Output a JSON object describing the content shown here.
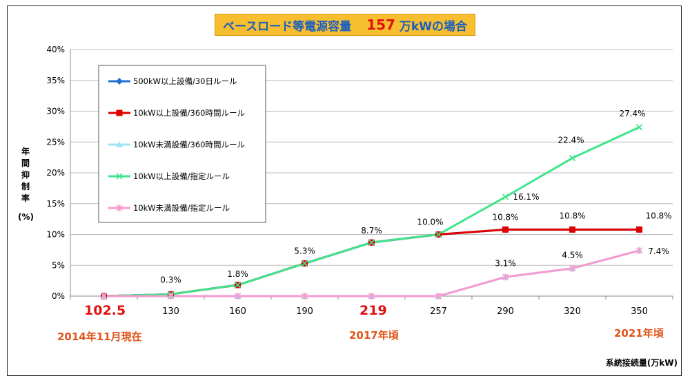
{
  "title": {
    "text": "ベースロード等電源容量",
    "value": "157",
    "unit": "万kWの場合"
  },
  "ylabel_chars": [
    "年",
    "間",
    "抑",
    "制",
    "率"
  ],
  "ylabel_unit": "(%)",
  "xlabel": "系統接続量(万kW)",
  "annotations": {
    "x_first": "102.5",
    "x_mid": "219",
    "date_now": "2014年11月現在",
    "date_mid": "2017年頃",
    "date_end": "2021年頃"
  },
  "colors": {
    "title_bg": "#f7be2f",
    "title_text": "#1a5fbf",
    "title_value": "#e01010",
    "annotation": "#e0541a",
    "annotation_red": "#e01010"
  },
  "chart_data": {
    "type": "line",
    "categories": [
      "102.5",
      "130",
      "160",
      "190",
      "219",
      "257",
      "290",
      "320",
      "350"
    ],
    "yticks": [
      "0%",
      "5%",
      "10%",
      "15%",
      "20%",
      "25%",
      "30%",
      "35%",
      "40%"
    ],
    "ylim": [
      0,
      40
    ],
    "grid": true,
    "legend_position": "top-left",
    "series": [
      {
        "name": "500kW以上設備/30日ルール",
        "values": [
          0,
          0.3,
          1.8,
          5.3,
          8.7,
          10.0,
          10.8,
          10.8,
          10.8
        ],
        "color": "#1f6fd1",
        "marker": "diamond"
      },
      {
        "name": "10kW以上設備/360時間ルール",
        "values": [
          0,
          0.3,
          1.8,
          5.3,
          8.7,
          10.0,
          10.8,
          10.8,
          10.8
        ],
        "color": "#e00000",
        "marker": "square"
      },
      {
        "name": "10kW未満設備/360時間ルール",
        "values": [
          0,
          0,
          0,
          0,
          0,
          0,
          3.1,
          4.5,
          7.4
        ],
        "color": "#9fe3ef",
        "marker": "triangle"
      },
      {
        "name": "10kW以上設備/指定ルール",
        "values": [
          0,
          0.3,
          1.8,
          5.3,
          8.7,
          10.0,
          16.1,
          22.4,
          27.4
        ],
        "color": "#3fe58c",
        "marker": "x"
      },
      {
        "name": "10kW未満設備/指定ルール",
        "values": [
          0,
          0,
          0,
          0,
          0,
          0,
          3.1,
          4.5,
          7.4
        ],
        "color": "#f59ad0",
        "marker": "star"
      }
    ],
    "data_labels": [
      {
        "text": "0.3%",
        "x": "130",
        "y": 0.3
      },
      {
        "text": "1.8%",
        "x": "160",
        "y": 1.8
      },
      {
        "text": "5.3%",
        "x": "190",
        "y": 5.3
      },
      {
        "text": "8.7%",
        "x": "219",
        "y": 8.7
      },
      {
        "text": "10.0%",
        "x": "257",
        "y": 10.0
      },
      {
        "text": "16.1%",
        "x": "290",
        "y": 16.1
      },
      {
        "text": "10.8%",
        "x": "290",
        "y": 10.8
      },
      {
        "text": "3.1%",
        "x": "290",
        "y": 3.1
      },
      {
        "text": "22.4%",
        "x": "320",
        "y": 22.4
      },
      {
        "text": "10.8%",
        "x": "320",
        "y": 10.8
      },
      {
        "text": "4.5%",
        "x": "320",
        "y": 4.5
      },
      {
        "text": "27.4%",
        "x": "350",
        "y": 27.4
      },
      {
        "text": "10.8%",
        "x": "350",
        "y": 10.8
      },
      {
        "text": "7.4%",
        "x": "350",
        "y": 7.4
      }
    ]
  }
}
